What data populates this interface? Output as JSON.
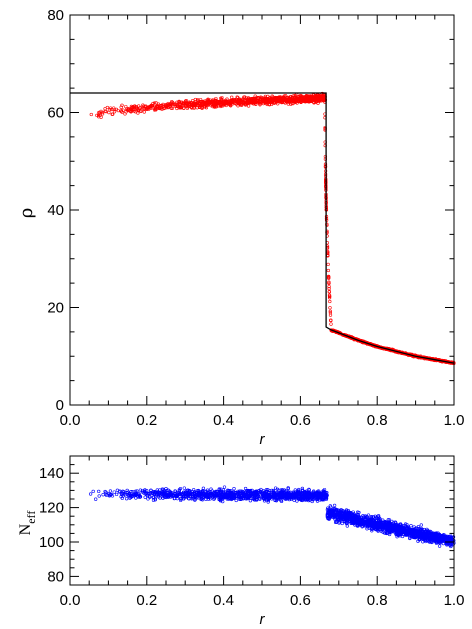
{
  "colors": {
    "analytic": "#000000",
    "density_points": "#ff0000",
    "neff_points": "#0000ff"
  },
  "chart_data": [
    {
      "type": "scatter",
      "panel": "top",
      "xlabel": "r",
      "ylabel": "ρ",
      "xlim": [
        0.0,
        1.0
      ],
      "ylim": [
        0,
        80
      ],
      "x_ticks": [
        0.0,
        0.2,
        0.4,
        0.6,
        0.8,
        1.0
      ],
      "x_tick_labels": [
        "0.0",
        "0.2",
        "0.4",
        "0.6",
        "0.8",
        "1.0"
      ],
      "y_ticks": [
        0,
        20,
        40,
        60,
        80
      ],
      "y_tick_labels": [
        "0",
        "20",
        "40",
        "60",
        "80"
      ],
      "grid": false,
      "analytic_line": {
        "x": [
          0.0,
          0.667,
          0.667,
          0.68,
          0.75,
          0.8,
          0.85,
          0.9,
          0.95,
          1.0
        ],
        "y": [
          64,
          64,
          16.0,
          15.4,
          13.3,
          12.0,
          11.0,
          10.0,
          9.3,
          8.6
        ]
      },
      "points_summary": {
        "inner_x_range": [
          0.05,
          0.665
        ],
        "inner_y_start": 59,
        "inner_y_end": 63,
        "inner_jitter": 1.6,
        "shock_x_range": [
          0.664,
          0.68
        ],
        "shock_y_range": [
          16,
          64
        ],
        "outer_x_range": [
          0.68,
          1.0
        ]
      },
      "points": [
        {
          "x": 0.06,
          "y": 59.6
        },
        {
          "x": 0.1,
          "y": 61.0
        },
        {
          "x": 0.15,
          "y": 61.6
        },
        {
          "x": 0.2,
          "y": 62.0
        },
        {
          "x": 0.3,
          "y": 62.4
        },
        {
          "x": 0.4,
          "y": 62.6
        },
        {
          "x": 0.5,
          "y": 62.8
        },
        {
          "x": 0.6,
          "y": 63.0
        },
        {
          "x": 0.66,
          "y": 62.8
        },
        {
          "x": 0.668,
          "y": 50.0
        },
        {
          "x": 0.67,
          "y": 35.0
        },
        {
          "x": 0.672,
          "y": 25.0
        },
        {
          "x": 0.675,
          "y": 18.0
        },
        {
          "x": 0.7,
          "y": 15.0
        },
        {
          "x": 0.8,
          "y": 12.0
        },
        {
          "x": 0.9,
          "y": 10.0
        },
        {
          "x": 1.0,
          "y": 8.6
        }
      ]
    },
    {
      "type": "scatter",
      "panel": "bottom",
      "xlabel": "r",
      "ylabel": "N",
      "ylabel_subscript": "eff",
      "xlim": [
        0.0,
        1.0
      ],
      "ylim": [
        75,
        150
      ],
      "x_ticks": [
        0.0,
        0.2,
        0.4,
        0.6,
        0.8,
        1.0
      ],
      "x_tick_labels": [
        "0.0",
        "0.2",
        "0.4",
        "0.6",
        "0.8",
        "1.0"
      ],
      "y_ticks": [
        80,
        100,
        120,
        140
      ],
      "y_tick_labels": [
        "80",
        "100",
        "120",
        "140"
      ],
      "grid": false,
      "points_summary": {
        "inner_x_range": [
          0.05,
          0.67
        ],
        "inner_y_start": 128,
        "inner_y_end": 127,
        "inner_jitter": 5,
        "outer_x_range": [
          0.67,
          1.0
        ],
        "outer_y_start": 117,
        "outer_y_end": 100,
        "outer_jitter": 6
      },
      "points": [
        {
          "x": 0.06,
          "y": 127
        },
        {
          "x": 0.1,
          "y": 129
        },
        {
          "x": 0.2,
          "y": 128
        },
        {
          "x": 0.3,
          "y": 126
        },
        {
          "x": 0.4,
          "y": 127
        },
        {
          "x": 0.5,
          "y": 127
        },
        {
          "x": 0.6,
          "y": 128
        },
        {
          "x": 0.66,
          "y": 128
        },
        {
          "x": 0.7,
          "y": 116
        },
        {
          "x": 0.8,
          "y": 111
        },
        {
          "x": 0.9,
          "y": 105
        },
        {
          "x": 1.0,
          "y": 98
        }
      ]
    }
  ]
}
